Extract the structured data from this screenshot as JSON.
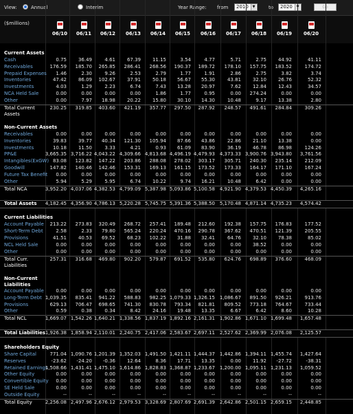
{
  "toolbar": {
    "view_label": "View:",
    "annual_label": "Annual",
    "interim_label": "Interim",
    "year_range_label": "Year Range:",
    "from_label": "from",
    "from_value": "2010",
    "to_label": "to",
    "to_value": "2020",
    "go_label": "Go"
  },
  "units": "($millions)",
  "periods": [
    "06/10",
    "06/11",
    "06/12",
    "06/13",
    "06/14",
    "06/15",
    "06/16",
    "06/17",
    "06/18",
    "06/19",
    "06/20"
  ],
  "rows": [
    {
      "k": "blank"
    },
    {
      "k": "sec",
      "name": "Current Assets"
    },
    {
      "k": "item",
      "name": "Cash",
      "v": [
        "0.75",
        "36.49",
        "4.61",
        "67.39",
        "11.15",
        "3.54",
        "4.77",
        "5.71",
        "2.75",
        "44.92",
        "41.11"
      ]
    },
    {
      "k": "item",
      "name": "Receivables",
      "v": [
        "176.59",
        "185.70",
        "265.85",
        "286.41",
        "268.56",
        "190.37",
        "189.72",
        "178.10",
        "157.75",
        "183.52",
        "174.72"
      ]
    },
    {
      "k": "item",
      "name": "Prepaid Expenses",
      "v": [
        "1.46",
        "2.30",
        "9.26",
        "2.53",
        "2.79",
        "1.77",
        "1.91",
        "2.86",
        "2.75",
        "3.82",
        "3.74"
      ]
    },
    {
      "k": "item",
      "name": "Inventories",
      "v": [
        "47.42",
        "86.09",
        "102.67",
        "37.91",
        "50.18",
        "56.67",
        "55.30",
        "43.81",
        "32.10",
        "26.76",
        "52.32"
      ]
    },
    {
      "k": "item",
      "name": "Investments",
      "v": [
        "4.03",
        "1.29",
        "2.23",
        "6.74",
        "7.43",
        "13.28",
        "20.97",
        "7.62",
        "12.84",
        "12.43",
        "34.57"
      ]
    },
    {
      "k": "item",
      "name": "NCA Held Sale",
      "v": [
        "0.00",
        "0.00",
        "0.00",
        "0.00",
        "1.86",
        "1.77",
        "0.95",
        "0.00",
        "274.24",
        "0.00",
        "0.00"
      ]
    },
    {
      "k": "item",
      "name": "Other",
      "v": [
        "0.00",
        "7.97",
        "18.98",
        "20.22",
        "15.80",
        "30.10",
        "14.30",
        "10.48",
        "9.17",
        "13.38",
        "2.80"
      ]
    },
    {
      "k": "total",
      "name": "Total Current Assets",
      "tall": true,
      "v": [
        "230.25",
        "319.85",
        "403.60",
        "421.19",
        "357.77",
        "297.50",
        "287.92",
        "248.57",
        "491.61",
        "284.84",
        "309.26"
      ]
    },
    {
      "k": "blank"
    },
    {
      "k": "sec",
      "name": "Non-Current Assets"
    },
    {
      "k": "item",
      "name": "Receivables",
      "v": [
        "0.00",
        "0.00",
        "0.00",
        "0.00",
        "0.00",
        "0.00",
        "0.00",
        "0.00",
        "0.00",
        "0.00",
        "0.00"
      ]
    },
    {
      "k": "item",
      "name": "Inventories",
      "v": [
        "39.83",
        "39.77",
        "40.34",
        "121.30",
        "105.94",
        "87.66",
        "43.86",
        "22.86",
        "21.10",
        "13.38",
        "0.00"
      ]
    },
    {
      "k": "item",
      "name": "Investments",
      "v": [
        "10.18",
        "11.50",
        "3.33",
        "4.21",
        "0.93",
        "61.09",
        "83.90",
        "36.19",
        "46.78",
        "86.98",
        "124.26"
      ]
    },
    {
      "k": "item",
      "name": "PP&E",
      "v": [
        "3,665.35",
        "3,716.22",
        "4,043.22",
        "4,309.66",
        "4,813.68",
        "4,496.19",
        "4,479.93",
        "4,373.33",
        "3,900.76",
        "3,943.80",
        "3,761.56"
      ]
    },
    {
      "k": "item",
      "name": "Intangibles(ExGW)",
      "v": [
        "83.08",
        "123.82",
        "147.22",
        "203.86",
        "288.08",
        "278.02",
        "303.17",
        "305.71",
        "240.30",
        "235.14",
        "212.09"
      ]
    },
    {
      "k": "item",
      "name": "Goodwill",
      "v": [
        "147.82",
        "140.46",
        "142.46",
        "153.31",
        "169.13",
        "161.15",
        "173.52",
        "173.33",
        "164.17",
        "171.10",
        "167.24"
      ]
    },
    {
      "k": "item",
      "name": "Future Tax Benefit",
      "v": [
        "0.00",
        "0.00",
        "0.00",
        "0.00",
        "0.00",
        "0.00",
        "0.00",
        "0.00",
        "0.00",
        "0.00",
        "0.00"
      ]
    },
    {
      "k": "item",
      "name": "Other",
      "v": [
        "5.94",
        "5.29",
        "5.95",
        "6.74",
        "10.22",
        "9.74",
        "16.21",
        "10.48",
        "6.42",
        "0.00",
        "0.00"
      ]
    },
    {
      "k": "total",
      "name": "Total NCA",
      "v": [
        "3,952.20",
        "4,037.06",
        "4,382.53",
        "4,799.09",
        "5,387.98",
        "5,093.86",
        "5,100.58",
        "4,921.90",
        "4,379.53",
        "4,450.39",
        "4,265.16"
      ]
    },
    {
      "k": "blank"
    },
    {
      "k": "bigtotal",
      "name": "Total Assets",
      "v": [
        "4,182.45",
        "4,356.90",
        "4,786.13",
        "5,220.28",
        "5,745.75",
        "5,391.36",
        "5,388.50",
        "5,170.48",
        "4,871.14",
        "4,735.23",
        "4,574.42"
      ]
    },
    {
      "k": "blank"
    },
    {
      "k": "sec",
      "name": "Current Liabilities"
    },
    {
      "k": "item",
      "name": "Account Payable",
      "v": [
        "213.22",
        "273.83",
        "320.49",
        "268.72",
        "257.41",
        "189.48",
        "212.60",
        "192.38",
        "157.75",
        "176.83",
        "177.52"
      ]
    },
    {
      "k": "item",
      "name": "Short-Term Debt",
      "v": [
        "2.58",
        "2.33",
        "79.80",
        "565.24",
        "220.24",
        "470.16",
        "290.78",
        "367.62",
        "470.51",
        "121.39",
        "205.55"
      ]
    },
    {
      "k": "item",
      "name": "Provisions",
      "v": [
        "41.51",
        "40.53",
        "69.52",
        "68.23",
        "102.22",
        "31.88",
        "32.41",
        "64.76",
        "32.10",
        "78.38",
        "85.02"
      ]
    },
    {
      "k": "item",
      "name": "NCL Held Sale",
      "v": [
        "0.00",
        "0.00",
        "0.00",
        "0.00",
        "0.00",
        "0.00",
        "0.00",
        "0.00",
        "38.52",
        "0.00",
        "0.00"
      ]
    },
    {
      "k": "item",
      "name": "Other",
      "v": [
        "0.00",
        "0.00",
        "0.00",
        "0.00",
        "0.00",
        "0.00",
        "0.00",
        "0.00",
        "0.00",
        "0.00",
        "0.00"
      ]
    },
    {
      "k": "total",
      "name": "Total Curr. Liabilities",
      "tall": true,
      "v": [
        "257.31",
        "316.68",
        "469.80",
        "902.20",
        "579.87",
        "691.52",
        "535.80",
        "624.76",
        "698.89",
        "376.60",
        "468.09"
      ]
    },
    {
      "k": "blank"
    },
    {
      "k": "sec",
      "name": "Non-Current Liabilities",
      "tall": true
    },
    {
      "k": "item",
      "name": "Account Payable",
      "v": [
        "0.00",
        "0.00",
        "0.00",
        "0.00",
        "0.00",
        "0.00",
        "0.00",
        "0.00",
        "0.00",
        "0.00",
        "0.00"
      ]
    },
    {
      "k": "item",
      "name": "Long-Term Debt",
      "v": [
        "1,039.35",
        "835.41",
        "941.22",
        "588.83",
        "982.25",
        "1,079.33",
        "1,326.15",
        "1,086.67",
        "891.50",
        "926.21",
        "913.76"
      ]
    },
    {
      "k": "item",
      "name": "Provisions",
      "v": [
        "629.13",
        "706.47",
        "698.65",
        "741.30",
        "830.78",
        "793.34",
        "821.81",
        "809.52",
        "773.18",
        "764.67",
        "733.44"
      ]
    },
    {
      "k": "item",
      "name": "Other",
      "v": [
        "0.59",
        "0.38",
        "0.34",
        "8.42",
        "24.16",
        "19.48",
        "13.35",
        "6.67",
        "6.42",
        "8.60",
        "10.28"
      ]
    },
    {
      "k": "total",
      "name": "Total NCL",
      "v": [
        "1,669.07",
        "1,542.26",
        "1,640.21",
        "1,338.56",
        "1,837.19",
        "1,892.16",
        "2,161.31",
        "1,902.86",
        "1,671.10",
        "1,699.48",
        "1,657.48"
      ]
    },
    {
      "k": "blank"
    },
    {
      "k": "bigtotal",
      "name": "Total Liabilities",
      "v": [
        "1,926.38",
        "1,858.94",
        "2,110.01",
        "2,240.75",
        "2,417.06",
        "2,583.67",
        "2,697.11",
        "2,527.62",
        "2,369.99",
        "2,076.08",
        "2,125.57"
      ]
    },
    {
      "k": "blank"
    },
    {
      "k": "sec",
      "name": "Shareholders Equity"
    },
    {
      "k": "item",
      "name": "Share Capital",
      "v": [
        "771.04",
        "1,090.76",
        "1,201.39",
        "1,352.03",
        "1,491.50",
        "1,421.11",
        "1,444.37",
        "1,442.86",
        "1,394.11",
        "1,455.74",
        "1,427.64"
      ]
    },
    {
      "k": "item",
      "name": "Reserves",
      "v": [
        "-23.62",
        "-24.20",
        "-0.36",
        "12.64",
        "8.36",
        "17.71",
        "13.35",
        "0.00",
        "11.92",
        "-27.72",
        "-38.31"
      ]
    },
    {
      "k": "item",
      "name": "Retained Earnings",
      "v": [
        "1,508.66",
        "1,431.41",
        "1,475.10",
        "1,614.86",
        "1,828.83",
        "1,368.87",
        "1,233.67",
        "1,200.00",
        "1,095.11",
        "1,231.13",
        "1,059.52"
      ]
    },
    {
      "k": "item",
      "name": "Other Equity",
      "v": [
        "0.00",
        "0.00",
        "0.00",
        "0.00",
        "0.00",
        "0.00",
        "0.00",
        "0.00",
        "0.00",
        "0.00",
        "0.00"
      ]
    },
    {
      "k": "item",
      "name": "Convertible Equity",
      "v": [
        "0.00",
        "0.00",
        "0.00",
        "0.00",
        "0.00",
        "0.00",
        "0.00",
        "0.00",
        "0.00",
        "0.00",
        "0.00"
      ]
    },
    {
      "k": "item",
      "name": "SE Held Sale",
      "v": [
        "0.00",
        "0.00",
        "0.00",
        "0.00",
        "0.00",
        "0.00",
        "0.00",
        "0.00",
        "0.00",
        "0.00",
        "0.00"
      ]
    },
    {
      "k": "item",
      "name": "Outside Equity",
      "v": [
        "--",
        "--",
        "--",
        "--",
        "--",
        "--",
        "--",
        "--",
        "--",
        "--",
        "--"
      ]
    },
    {
      "k": "total",
      "name": "Total Equity",
      "v": [
        "2,256.08",
        "2,497.96",
        "2,676.12",
        "2,979.53",
        "3,328.69",
        "2,807.69",
        "2,691.39",
        "2,642.86",
        "2,501.15",
        "2,659.15",
        "2,448.85"
      ]
    }
  ]
}
